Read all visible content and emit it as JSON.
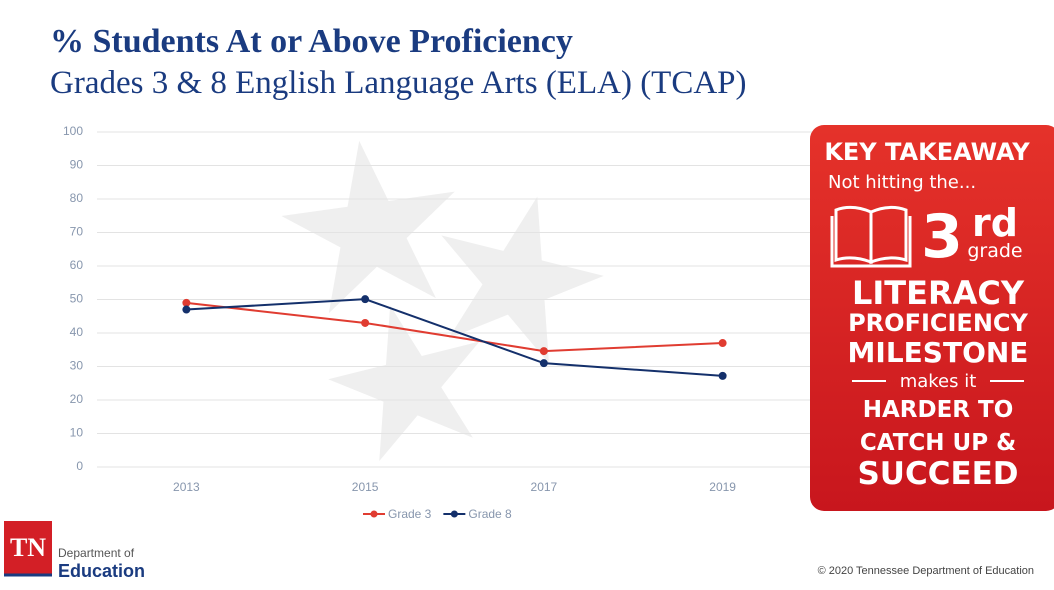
{
  "title": "% Students At or Above Proficiency",
  "subtitle": "Grades 3 & 8 English Language Arts (ELA) (TCAP)",
  "chart_data": {
    "type": "line",
    "categories": [
      "2013",
      "2015",
      "2017",
      "2019"
    ],
    "series": [
      {
        "name": "Grade 3",
        "color": "#e03c31",
        "values": [
          49,
          43,
          34.6,
          37
        ]
      },
      {
        "name": "Grade 8",
        "color": "#14306b",
        "values": [
          47,
          50.1,
          31,
          27.2
        ]
      }
    ],
    "ylim": [
      0,
      100
    ],
    "yticks": [
      0,
      10,
      20,
      30,
      40,
      50,
      60,
      70,
      80,
      90,
      100
    ],
    "grid": true,
    "legend": "bottom"
  },
  "takeaway": {
    "heading": "KEY TAKEAWAY",
    "intro": "Not hitting the...",
    "number": "3",
    "suffix": "rd",
    "unit": "grade",
    "lines": [
      "LITERACY",
      "PROFICIENCY",
      "MILESTONE"
    ],
    "connector": "makes it",
    "closing": [
      "HARDER TO",
      "CATCH UP &",
      "SUCCEED"
    ]
  },
  "footer": {
    "logo": "TN",
    "department": "Department of",
    "agency": "Education",
    "copyright": "© 2020 Tennessee Department of Education"
  }
}
